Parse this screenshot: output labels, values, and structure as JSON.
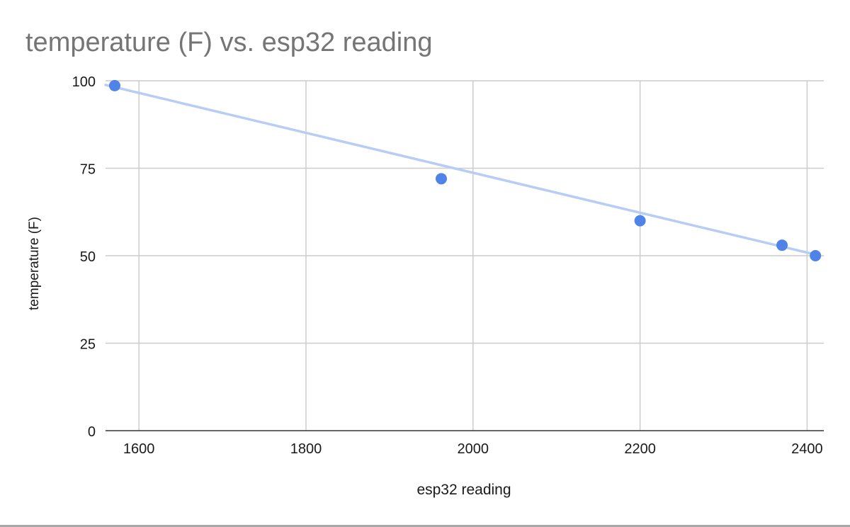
{
  "chart_data": {
    "type": "scatter",
    "title": "temperature (F) vs. esp32 reading",
    "xlabel": "esp32 reading",
    "ylabel": "temperature (F)",
    "xlim": [
      1560,
      2420
    ],
    "ylim": [
      0,
      100
    ],
    "x_ticks": [
      1600,
      1800,
      2000,
      2200,
      2400
    ],
    "y_ticks": [
      0,
      25,
      50,
      75,
      100
    ],
    "grid": true,
    "legend": "none",
    "series": [
      {
        "points": [
          {
            "x": 1571,
            "y": 98.6
          },
          {
            "x": 1962,
            "y": 72
          },
          {
            "x": 2200,
            "y": 60
          },
          {
            "x": 2370,
            "y": 53
          },
          {
            "x": 2410,
            "y": 50
          }
        ],
        "color": "#4f83e8"
      }
    ],
    "trendline": {
      "type": "linear",
      "color": "#b7cdf5",
      "from": {
        "x": 1560,
        "y": 98.8
      },
      "to": {
        "x": 2412,
        "y": 50.2
      }
    },
    "colors": {
      "title": "#757575",
      "axis_text": "#1a1a1a",
      "grid": "#cccccc",
      "axis_line": "#333333"
    }
  }
}
